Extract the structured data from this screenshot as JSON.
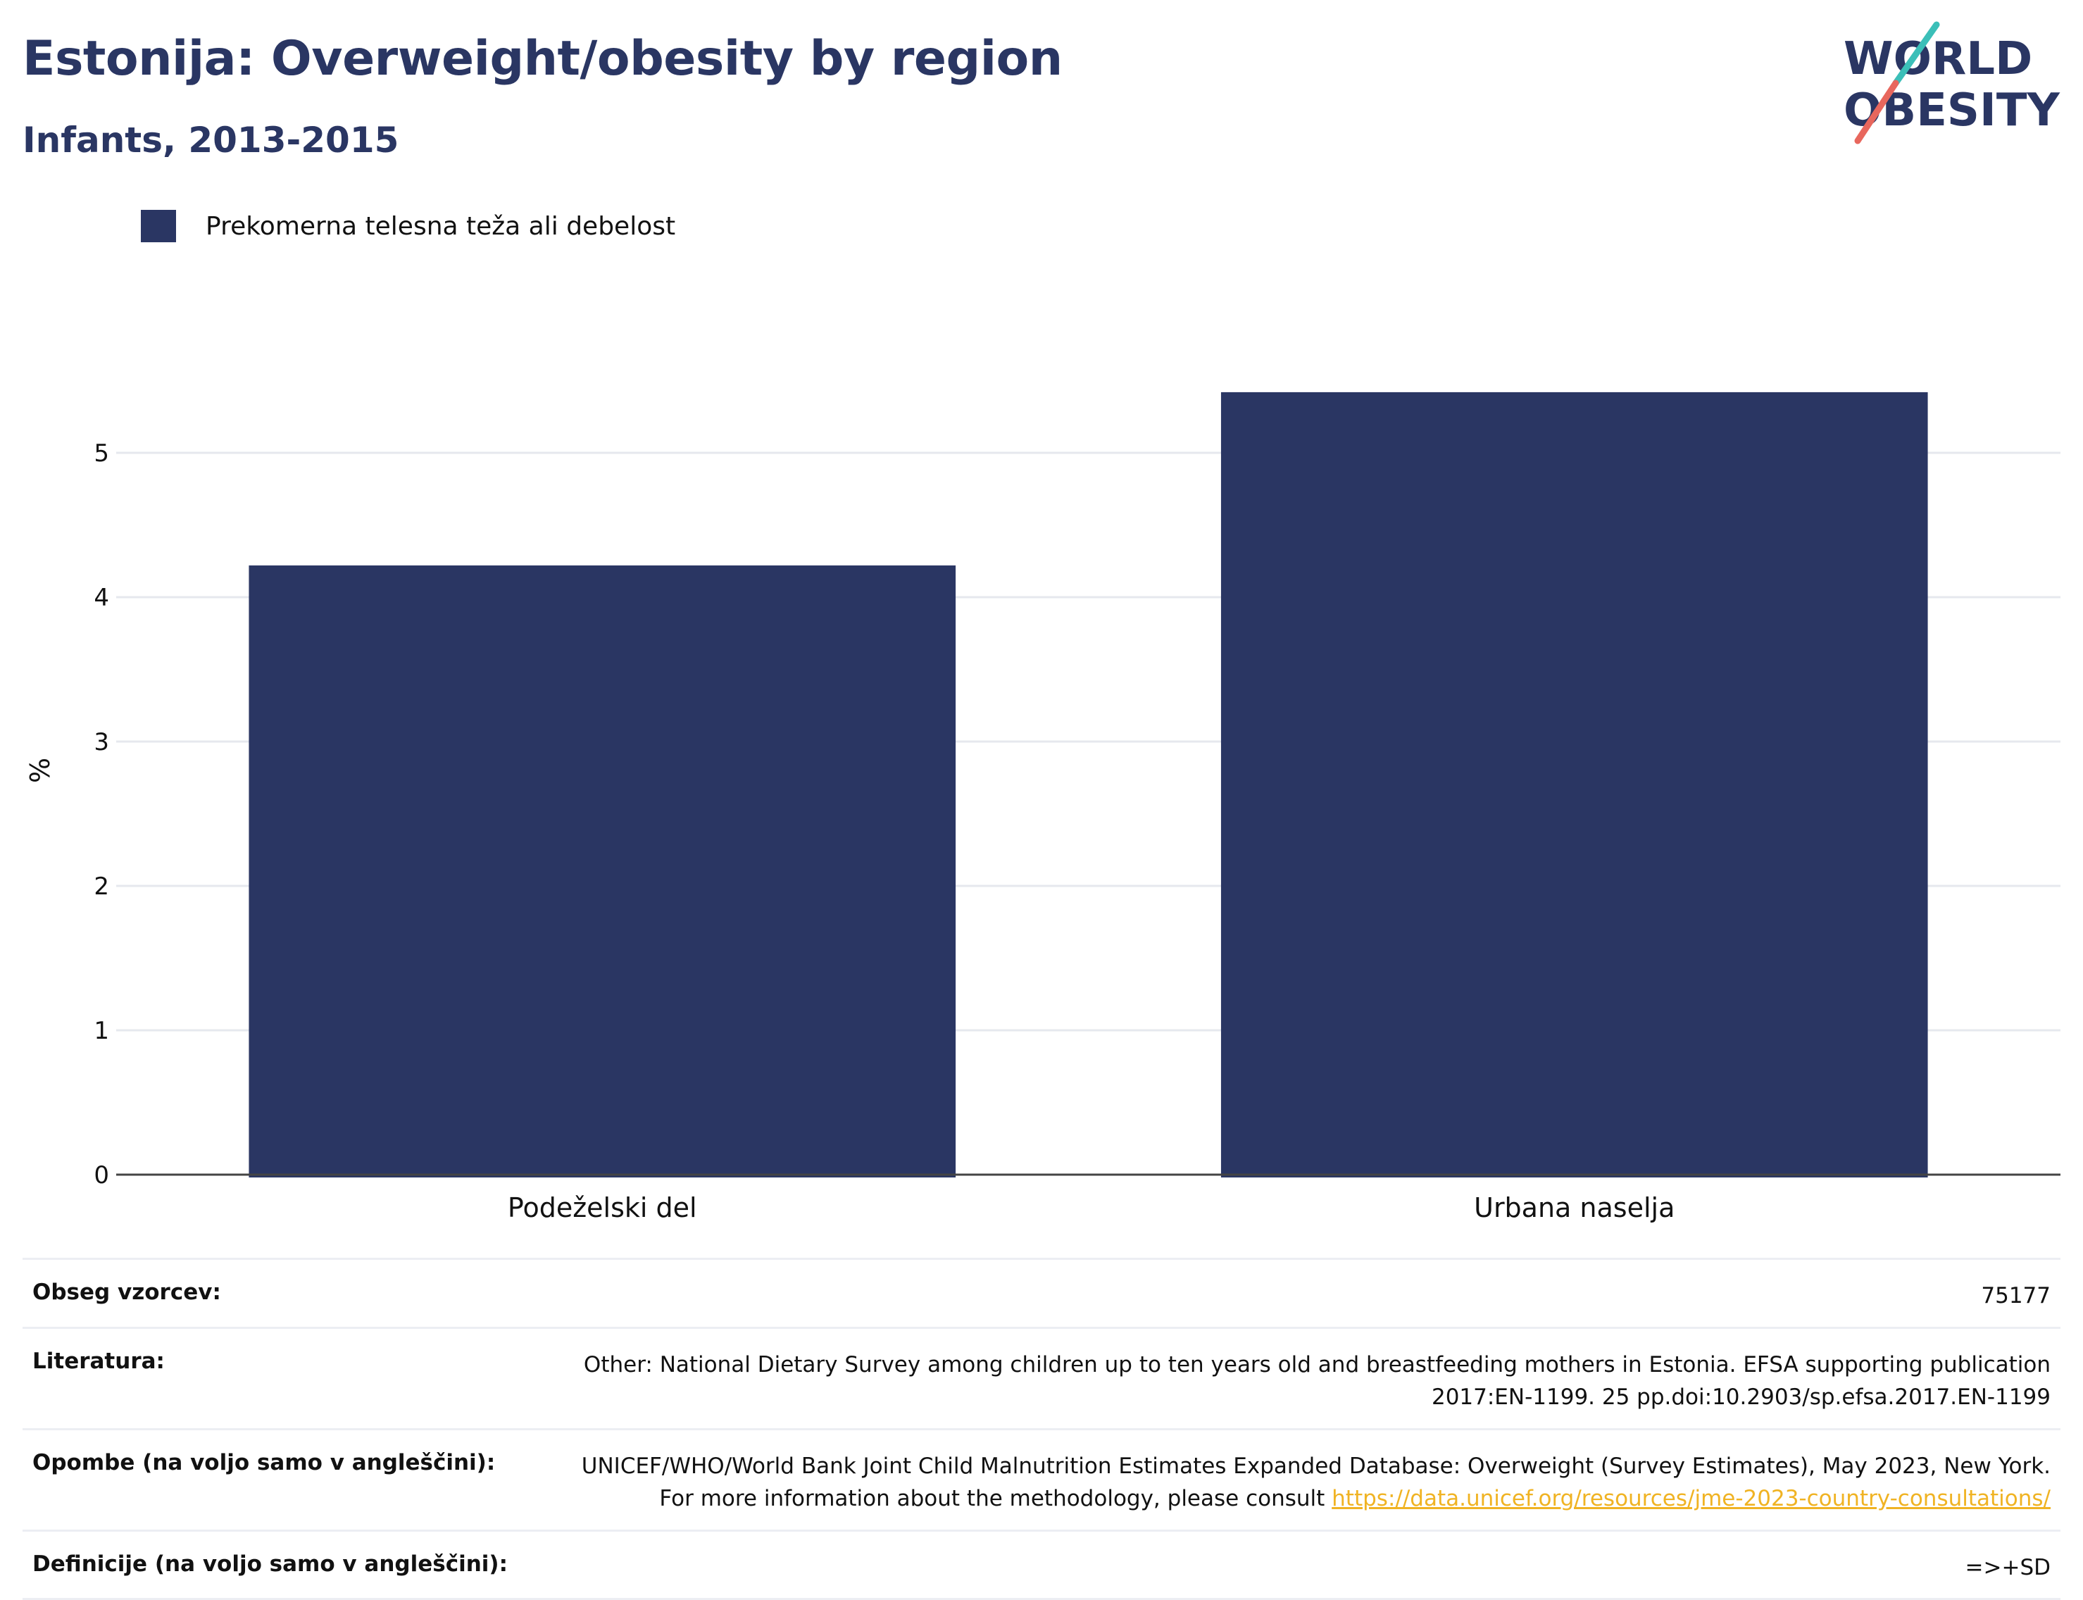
{
  "header": {
    "title": "Estonija: Overweight/obesity by region",
    "subtitle": "Infants, 2013-2015"
  },
  "logo": {
    "line1": "WORLD",
    "line2": "OBESITY",
    "colors": {
      "text": "#2a3663",
      "slash_top": "#3bbfb8",
      "slash_bottom": "#e8675d"
    }
  },
  "legend": {
    "label": "Prekomerna telesna teža ali debelost",
    "color": "#2a3663"
  },
  "chart_data": {
    "type": "bar",
    "categories": [
      "Podeželski del",
      "Urbana naselja"
    ],
    "series": [
      {
        "name": "Prekomerna telesna teža ali debelost",
        "values": [
          4.22,
          5.42
        ],
        "color": "#2a3663"
      }
    ],
    "ylabel": "%",
    "xlabel": "",
    "ylim": [
      0,
      5.6
    ],
    "yticks": [
      0,
      1,
      2,
      3,
      4,
      5
    ],
    "grid": true,
    "legend_position": "top-left"
  },
  "info": {
    "sample_size": {
      "label": "Obseg vzorcev:",
      "value": "75177"
    },
    "literature": {
      "label": "Literatura:",
      "value": "Other: National Dietary Survey among children up to ten years old and breastfeeding mothers in Estonia. EFSA supporting publication 2017:EN-1199. 25 pp.doi:10.2903/sp.efsa.2017.EN-1199"
    },
    "notes": {
      "label": "Opombe (na voljo samo v angleščini):",
      "value": "UNICEF/WHO/World Bank Joint Child Malnutrition Estimates Expanded Database: Overweight (Survey Estimates), May 2023, New York. For more information about the methodology, please consult ",
      "link": "https://data.unicef.org/resources/jme-2023-country-consultations/"
    },
    "definitions": {
      "label": "Definicije (na voljo samo v angleščini):",
      "value": "=>+SD"
    }
  }
}
